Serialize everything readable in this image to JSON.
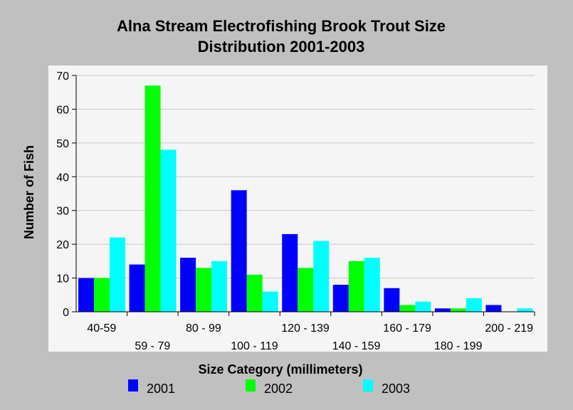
{
  "chart_data": {
    "type": "bar",
    "title_line1": "Alna Stream Electrofishing Brook Trout Size",
    "title_line2": "Distribution 2001-2003",
    "xlabel": "Size Category (millimeters)",
    "ylabel": "Number of Fish",
    "ylim": [
      0,
      70
    ],
    "yticks": [
      0,
      10,
      20,
      30,
      40,
      50,
      60,
      70
    ],
    "grid": true,
    "legend_position": "bottom",
    "categories": [
      "40-59",
      "59 - 79",
      "80 - 99",
      "100 - 119",
      "120 - 139",
      "140 - 159",
      "160 - 179",
      "180 - 199",
      "200 - 219"
    ],
    "series": [
      {
        "name": "2001",
        "color": "#0000ff",
        "values": [
          10,
          14,
          16,
          36,
          23,
          8,
          7,
          1,
          2
        ]
      },
      {
        "name": "2002",
        "color": "#00ff00",
        "values": [
          10,
          67,
          13,
          11,
          13,
          15,
          2,
          1,
          0
        ]
      },
      {
        "name": "2003",
        "color": "#00ffff",
        "values": [
          22,
          48,
          15,
          6,
          21,
          16,
          3,
          4,
          1
        ]
      }
    ]
  }
}
